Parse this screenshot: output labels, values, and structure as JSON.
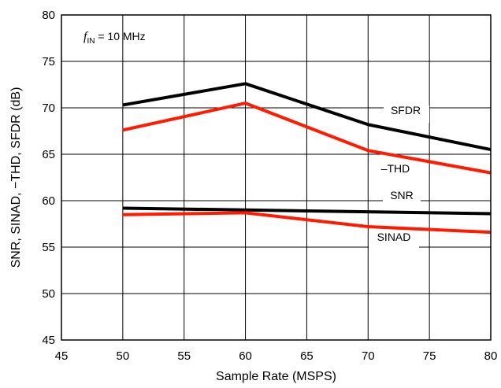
{
  "chart_data": {
    "type": "line",
    "xlabel": "Sample Rate (MSPS)",
    "ylabel": "SNR, SINAD, −THD, SFDR (dB)",
    "xlim": [
      45,
      80
    ],
    "ylim": [
      45,
      80
    ],
    "xticks": [
      45,
      50,
      55,
      60,
      65,
      70,
      75,
      80
    ],
    "yticks": [
      45,
      50,
      55,
      60,
      65,
      70,
      75,
      80
    ],
    "grid": true,
    "annotation": {
      "symbol": "f",
      "subscript": "IN",
      "text": " = 10 MHz"
    },
    "series": [
      {
        "name": "SFDR",
        "color": "#000000",
        "x": [
          50,
          60,
          70,
          80
        ],
        "y": [
          70.3,
          72.6,
          68.2,
          65.5
        ]
      },
      {
        "name": "–THD",
        "color": "#ff1a00",
        "x": [
          50,
          60,
          70,
          80
        ],
        "y": [
          67.6,
          70.5,
          65.4,
          63.0
        ]
      },
      {
        "name": "SNR",
        "color": "#000000",
        "x": [
          50,
          60,
          70,
          80
        ],
        "y": [
          59.2,
          59.0,
          58.8,
          58.6
        ]
      },
      {
        "name": "SINAD",
        "color": "#ff1a00",
        "x": [
          50,
          60,
          70,
          80
        ],
        "y": [
          58.5,
          58.7,
          57.2,
          56.6
        ]
      }
    ]
  }
}
